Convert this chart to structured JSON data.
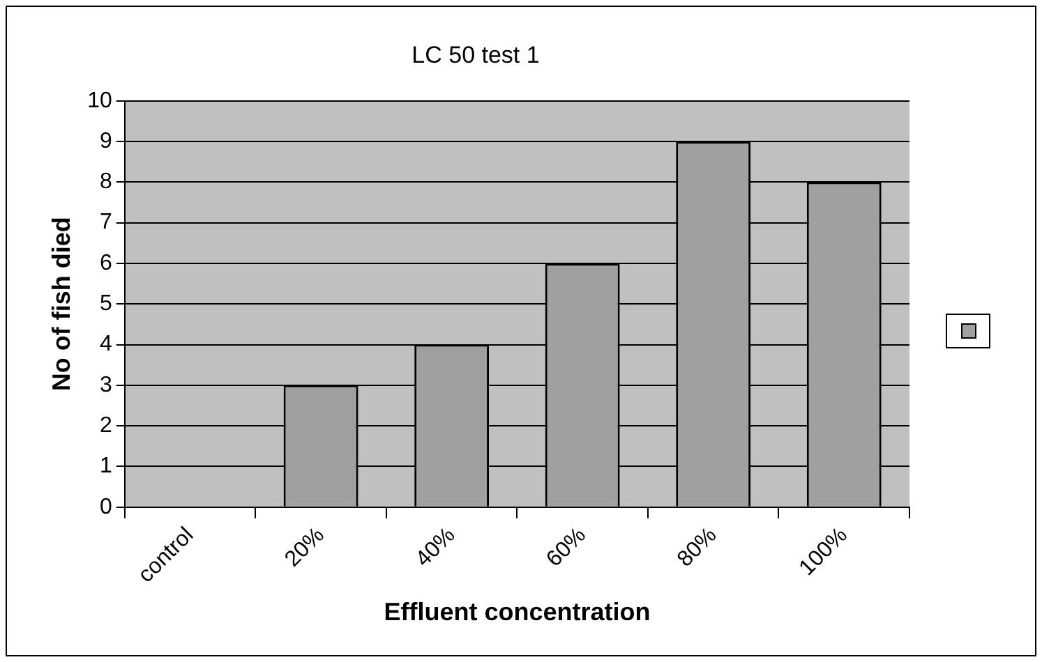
{
  "chart_data": {
    "type": "bar",
    "title": "LC 50 test 1",
    "xlabel": "Effluent concentration",
    "ylabel": "No of fish died",
    "categories": [
      "control",
      "20%",
      "40%",
      "60%",
      "80%",
      "100%"
    ],
    "series": [
      {
        "color": "#a0a0a0",
        "values": [
          0,
          3,
          4,
          6,
          9,
          8
        ]
      }
    ],
    "ylim": [
      0,
      10
    ],
    "yticks": [
      0,
      1,
      2,
      3,
      4,
      5,
      6,
      7,
      8,
      9,
      10
    ],
    "grid": "y"
  }
}
